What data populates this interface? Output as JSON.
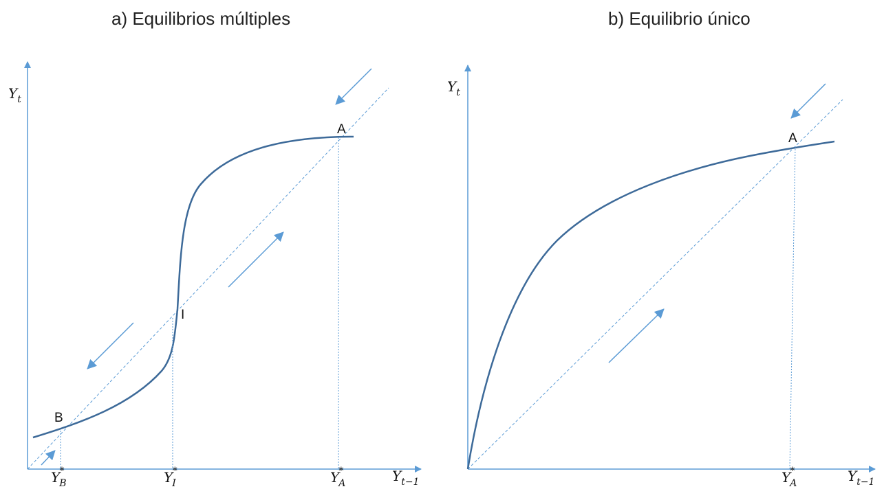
{
  "panels": [
    {
      "title": "a) Equilibrios múltiples",
      "y_axis": {
        "main": "Y",
        "sub": "t"
      },
      "x_axis": {
        "main": "Y",
        "sub": "t−1"
      },
      "points": [
        {
          "label": "A"
        },
        {
          "label": "I"
        },
        {
          "label": "B"
        }
      ],
      "ticks": [
        {
          "main": "Y",
          "sub": "B",
          "sup": "*"
        },
        {
          "main": "Y",
          "sub": "I",
          "sup": "*"
        },
        {
          "main": "Y",
          "sub": "A",
          "sup": "*"
        }
      ]
    },
    {
      "title": "b) Equilibrio único",
      "y_axis": {
        "main": "Y",
        "sub": "t"
      },
      "x_axis": {
        "main": "Y",
        "sub": "t−1"
      },
      "points": [
        {
          "label": "A"
        }
      ],
      "ticks": [
        {
          "main": "Y",
          "sub": "A",
          "sup": "*"
        }
      ]
    }
  ],
  "colors": {
    "axis": "#5b9bd5",
    "curve": "#3d6a99",
    "guide": "#5b9bd5",
    "arrow": "#5b9bd5"
  }
}
